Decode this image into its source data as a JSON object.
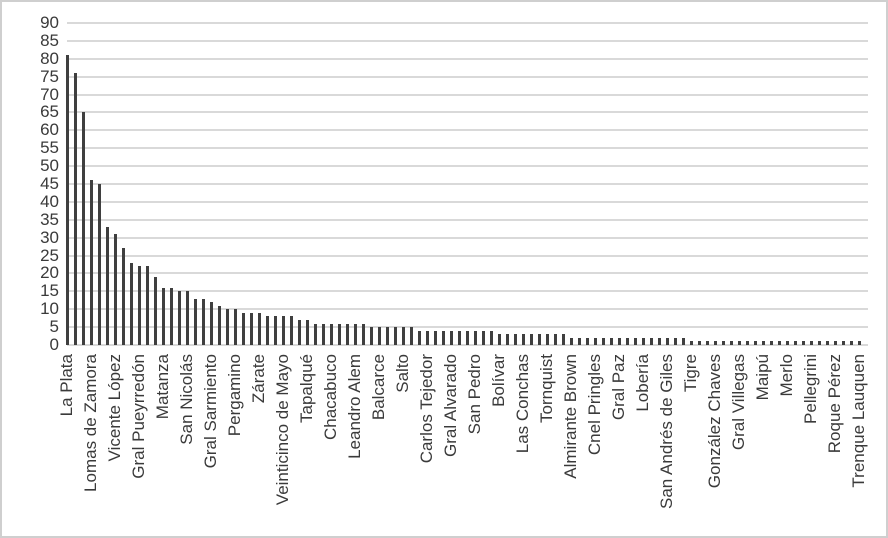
{
  "chart_data": {
    "type": "bar",
    "title": "",
    "xlabel": "",
    "ylabel": "",
    "ylim": [
      0,
      90
    ],
    "yticks": [
      0,
      5,
      10,
      15,
      20,
      25,
      30,
      35,
      40,
      45,
      50,
      55,
      60,
      65,
      70,
      75,
      80,
      85,
      90
    ],
    "grid": "horizontal",
    "legend_position": "none",
    "bar_color": "#3f3f3f",
    "gridline_color": "#d9d9d9",
    "axis_text_color": "#3a3a3a",
    "label_interval": 3,
    "visible_labels": [
      "La Plata",
      "Lomas de Zamora",
      "Vicente López",
      "Gral Pueyrredón",
      "Matanza",
      "San Nicolás",
      "Gral Sarmiento",
      "Pergamino",
      "Zárate",
      "Veinticinco de Mayo",
      "Tapalqué",
      "Chacabuco",
      "Leandro Alem",
      "Balcarce",
      "Salto",
      "Carlos Tejedor",
      "Gral Alvarado",
      "San Pedro",
      "Bolívar",
      "Las Conchas",
      "Tornquist",
      "Almirante Brown",
      "Cnel Pringles",
      "Gral Paz",
      "Lobería",
      "San Andrés de Giles",
      "Tigre",
      "González Chaves",
      "Gral Villegas",
      "Maipú",
      "Merlo",
      "Pellegrini",
      "Roque Pérez",
      "Trenque Lauquen"
    ],
    "values": [
      81,
      76,
      65,
      46,
      45,
      33,
      31,
      27,
      23,
      22,
      22,
      19,
      16,
      16,
      15,
      15,
      13,
      13,
      12,
      11,
      10,
      10,
      9,
      9,
      9,
      8,
      8,
      8,
      8,
      7,
      7,
      6,
      6,
      6,
      6,
      6,
      6,
      6,
      5,
      5,
      5,
      5,
      5,
      5,
      4,
      4,
      4,
      4,
      4,
      4,
      4,
      4,
      4,
      4,
      3,
      3,
      3,
      3,
      3,
      3,
      3,
      3,
      3,
      2,
      2,
      2,
      2,
      2,
      2,
      2,
      2,
      2,
      2,
      2,
      2,
      2,
      2,
      2,
      1,
      1,
      1,
      1,
      1,
      1,
      1,
      1,
      1,
      1,
      1,
      1,
      1,
      1,
      1,
      1,
      1,
      1,
      1,
      1,
      1,
      1
    ]
  }
}
